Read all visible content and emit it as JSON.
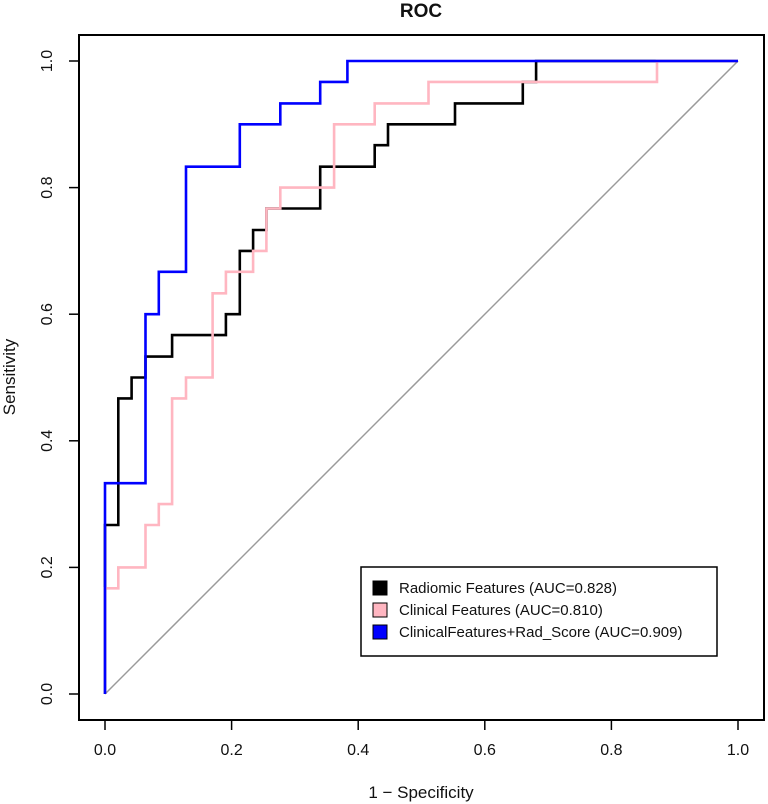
{
  "chart_data": {
    "type": "line",
    "title": "ROC",
    "xlabel": "1 − Specificity",
    "ylabel": "Sensitivity",
    "xlim": [
      0,
      1
    ],
    "ylim": [
      0,
      1
    ],
    "xticks": [
      "0.0",
      "0.2",
      "0.4",
      "0.6",
      "0.8",
      "1.0"
    ],
    "yticks": [
      "0.0",
      "0.2",
      "0.4",
      "0.6",
      "0.8",
      "1.0"
    ],
    "grid": false,
    "legend_position": "bottom-right",
    "diagonal": {
      "x": [
        0,
        1
      ],
      "y": [
        0,
        1
      ],
      "color": "#9a9a9a"
    },
    "series": [
      {
        "name": "Radiomic Features (AUC=0.828)",
        "color": "#000000",
        "x": [
          0,
          0,
          0.021,
          0.021,
          0.042,
          0.042,
          0.064,
          0.064,
          0.106,
          0.106,
          0.191,
          0.191,
          0.213,
          0.213,
          0.234,
          0.234,
          0.255,
          0.255,
          0.34,
          0.34,
          0.426,
          0.426,
          0.447,
          0.447,
          0.553,
          0.553,
          0.66,
          0.66,
          0.681,
          0.681,
          1.0
        ],
        "y": [
          0,
          0.267,
          0.267,
          0.467,
          0.467,
          0.5,
          0.5,
          0.533,
          0.533,
          0.567,
          0.567,
          0.6,
          0.6,
          0.7,
          0.7,
          0.733,
          0.733,
          0.767,
          0.767,
          0.833,
          0.833,
          0.867,
          0.867,
          0.9,
          0.9,
          0.933,
          0.933,
          0.967,
          0.967,
          1.0,
          1.0
        ]
      },
      {
        "name": "Clinical Features (AUC=0.810)",
        "color": "#ffb6c1",
        "x": [
          0,
          0,
          0.021,
          0.021,
          0.064,
          0.064,
          0.085,
          0.085,
          0.106,
          0.106,
          0.128,
          0.128,
          0.17,
          0.17,
          0.191,
          0.191,
          0.234,
          0.234,
          0.255,
          0.255,
          0.277,
          0.277,
          0.362,
          0.362,
          0.426,
          0.426,
          0.511,
          0.511,
          0.872,
          0.872,
          1.0
        ],
        "y": [
          0,
          0.167,
          0.167,
          0.2,
          0.2,
          0.267,
          0.267,
          0.3,
          0.3,
          0.467,
          0.467,
          0.5,
          0.5,
          0.633,
          0.633,
          0.667,
          0.667,
          0.7,
          0.7,
          0.767,
          0.767,
          0.8,
          0.8,
          0.9,
          0.9,
          0.933,
          0.933,
          0.967,
          0.967,
          1.0,
          1.0
        ]
      },
      {
        "name": "ClinicalFeatures+Rad_Score (AUC=0.909)",
        "color": "#0000ff",
        "x": [
          0,
          0,
          0.064,
          0.064,
          0.085,
          0.085,
          0.128,
          0.128,
          0.213,
          0.213,
          0.277,
          0.277,
          0.34,
          0.34,
          0.383,
          0.383,
          1.0
        ],
        "y": [
          0,
          0.333,
          0.333,
          0.6,
          0.6,
          0.667,
          0.667,
          0.833,
          0.833,
          0.9,
          0.9,
          0.933,
          0.933,
          0.967,
          0.967,
          1.0,
          1.0
        ]
      }
    ]
  }
}
